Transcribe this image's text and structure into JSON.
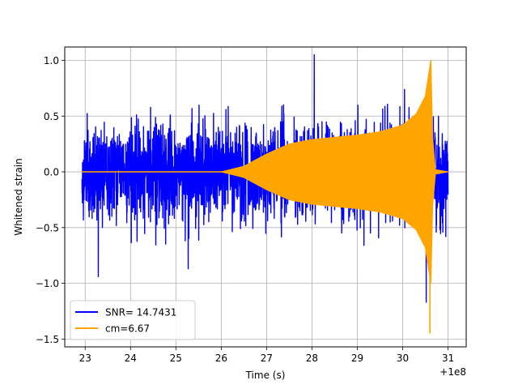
{
  "chart_data": {
    "type": "line",
    "title": "",
    "xlabel": "Time (s)",
    "ylabel": "Whitened strain",
    "x_offset_label": "+1e8",
    "xlim": [
      22.55,
      31.4
    ],
    "ylim": [
      -1.57,
      1.12
    ],
    "xticks": [
      23,
      24,
      25,
      26,
      27,
      28,
      29,
      30,
      31
    ],
    "yticks": [
      1.0,
      0.5,
      0.0,
      -0.5,
      -1.0,
      -1.5
    ],
    "ytick_labels": [
      "1.0",
      "0.5",
      "0.0",
      "−0.5",
      "−1.0",
      "−1.5"
    ],
    "grid": true,
    "legend_position": "lower-left",
    "series": [
      {
        "name": "SNR= 14.7431",
        "color": "#0000ff",
        "kind": "noise",
        "x_range": [
          22.93,
          31.0
        ],
        "typical_peak": 0.45,
        "notable_peaks": [
          {
            "x": 23.29,
            "y": -0.94
          },
          {
            "x": 25.27,
            "y": -0.87
          },
          {
            "x": 28.05,
            "y": 1.05
          },
          {
            "x": 30.04,
            "y": 0.74
          },
          {
            "x": 30.52,
            "y": -1.17
          }
        ]
      },
      {
        "name": "cm=6.67",
        "color": "#ffa500",
        "kind": "chirp",
        "envelope": [
          {
            "x": 22.93,
            "y": 0.0
          },
          {
            "x": 26.0,
            "y": 0.0
          },
          {
            "x": 26.5,
            "y": 0.05
          },
          {
            "x": 27.0,
            "y": 0.16
          },
          {
            "x": 27.5,
            "y": 0.25
          },
          {
            "x": 28.0,
            "y": 0.29
          },
          {
            "x": 29.0,
            "y": 0.33
          },
          {
            "x": 29.5,
            "y": 0.36
          },
          {
            "x": 30.0,
            "y": 0.42
          },
          {
            "x": 30.3,
            "y": 0.52
          },
          {
            "x": 30.5,
            "y": 0.68
          },
          {
            "x": 30.62,
            "y": 1.0
          },
          {
            "x": 30.66,
            "y": 0.3
          },
          {
            "x": 30.72,
            "y": 0.02
          },
          {
            "x": 31.0,
            "y": 0.0
          }
        ],
        "peak_max": {
          "x": 30.62,
          "y": 1.0
        },
        "peak_min": {
          "x": 30.6,
          "y": -1.45
        }
      }
    ]
  }
}
